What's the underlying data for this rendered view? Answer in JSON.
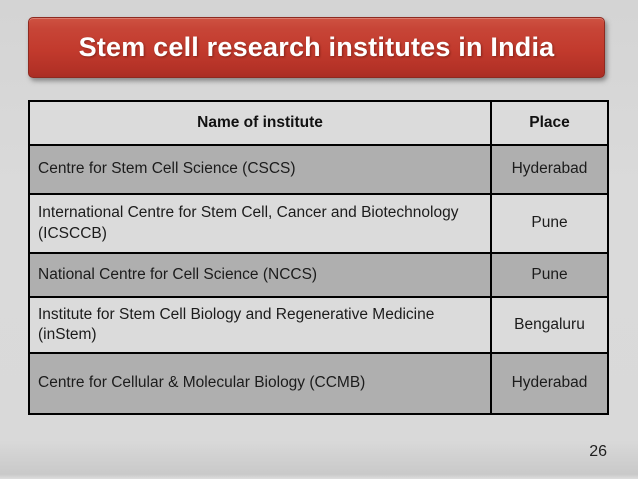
{
  "title": "Stem cell research institutes in India",
  "table": {
    "headers": [
      "Name of institute",
      "Place"
    ],
    "rows": [
      {
        "name": "Centre for Stem Cell Science (CSCS)",
        "place": "Hyderabad"
      },
      {
        "name": "International Centre for Stem Cell, Cancer and Biotechnology (ICSCCB)",
        "place": "Pune"
      },
      {
        "name": "National Centre for Cell Science (NCCS)",
        "place": "Pune"
      },
      {
        "name": "Institute for Stem Cell Biology and Regenerative Medicine (inStem)",
        "place": "Bengaluru"
      },
      {
        "name": "Centre for Cellular & Molecular Biology (CCMB)",
        "place": "Hyderabad"
      }
    ]
  },
  "page_number": "26",
  "colors": {
    "title_red": "#C23A2D",
    "title_border": "#8E2A20",
    "row_dark": "#AFAFAF",
    "row_light": "#DBDBDB",
    "border_black": "#000000",
    "slide_background": "#D9D9D9"
  }
}
